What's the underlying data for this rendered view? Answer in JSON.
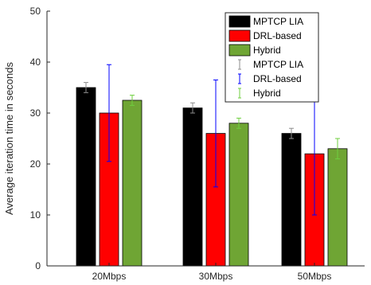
{
  "chart_data": {
    "type": "bar",
    "categories": [
      "20Mbps",
      "30Mbps",
      "50Mbps"
    ],
    "ylabel": "Average iteration time in seconds",
    "xlabel": "",
    "ylim": [
      0,
      50
    ],
    "yticks": [
      0,
      10,
      20,
      30,
      40,
      50
    ],
    "grid": false,
    "legend_position": "top-right",
    "series": [
      {
        "name": "MPTCP LIA",
        "color": "#000000",
        "values": [
          35,
          31,
          26
        ],
        "errors": [
          [
            34,
            36
          ],
          [
            30,
            32
          ],
          [
            25,
            27
          ]
        ],
        "error_color": "#8c8c8c",
        "error_legend": "MPTCP LIA"
      },
      {
        "name": "DRL-based",
        "color": "#ff0000",
        "values": [
          30,
          26,
          22
        ],
        "errors": [
          [
            20.5,
            39.5
          ],
          [
            15.5,
            36.5
          ],
          [
            10,
            34
          ]
        ],
        "error_color": "#0000ff",
        "error_legend": "DRL-based"
      },
      {
        "name": "Hybrid",
        "color": "#6fa534",
        "values": [
          32.5,
          28,
          23
        ],
        "errors": [
          [
            31.5,
            33.5
          ],
          [
            27,
            29
          ],
          [
            21,
            25
          ]
        ],
        "error_color": "#6fcf3f",
        "error_legend": "Hybrid"
      }
    ]
  }
}
